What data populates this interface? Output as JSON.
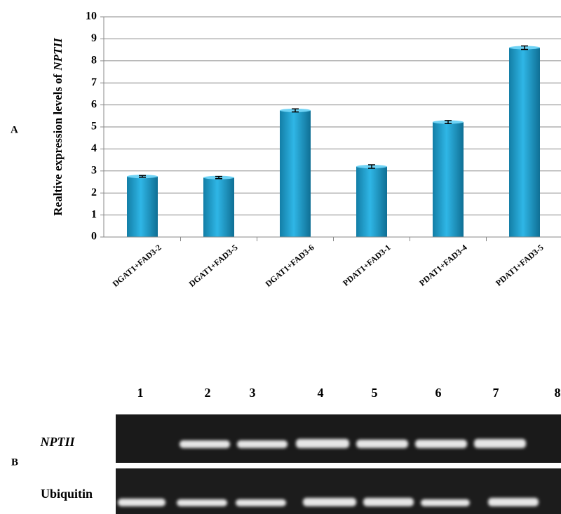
{
  "chart_data": {
    "type": "bar",
    "ylabel": [
      "Realtive expression levels of",
      "NPTII"
    ],
    "categories": [
      "DGAT1+FAD3-2",
      "DGAT1+FAD3-5",
      "DGAT1+FAD3-6",
      "PDAT1+FAD3-1",
      "PDAT1+FAD3-4",
      "PDAT1+FAD3-5"
    ],
    "values": [
      2.75,
      2.7,
      5.75,
      3.2,
      5.22,
      8.6
    ],
    "errors": [
      0.04,
      0.05,
      0.07,
      0.08,
      0.07,
      0.08
    ],
    "color": "#1ea0cf",
    "ylim": [
      0,
      10
    ],
    "yticks": [
      0,
      1,
      2,
      3,
      4,
      5,
      6,
      7,
      8,
      9,
      10
    ],
    "grid": true
  },
  "panel_labels": [
    "A",
    "B"
  ],
  "gel": {
    "lanes": [
      "1",
      "2",
      "3",
      "4",
      "5",
      "6",
      "7",
      "8"
    ],
    "rows": [
      "NPTII",
      "Ubiquitin"
    ]
  }
}
